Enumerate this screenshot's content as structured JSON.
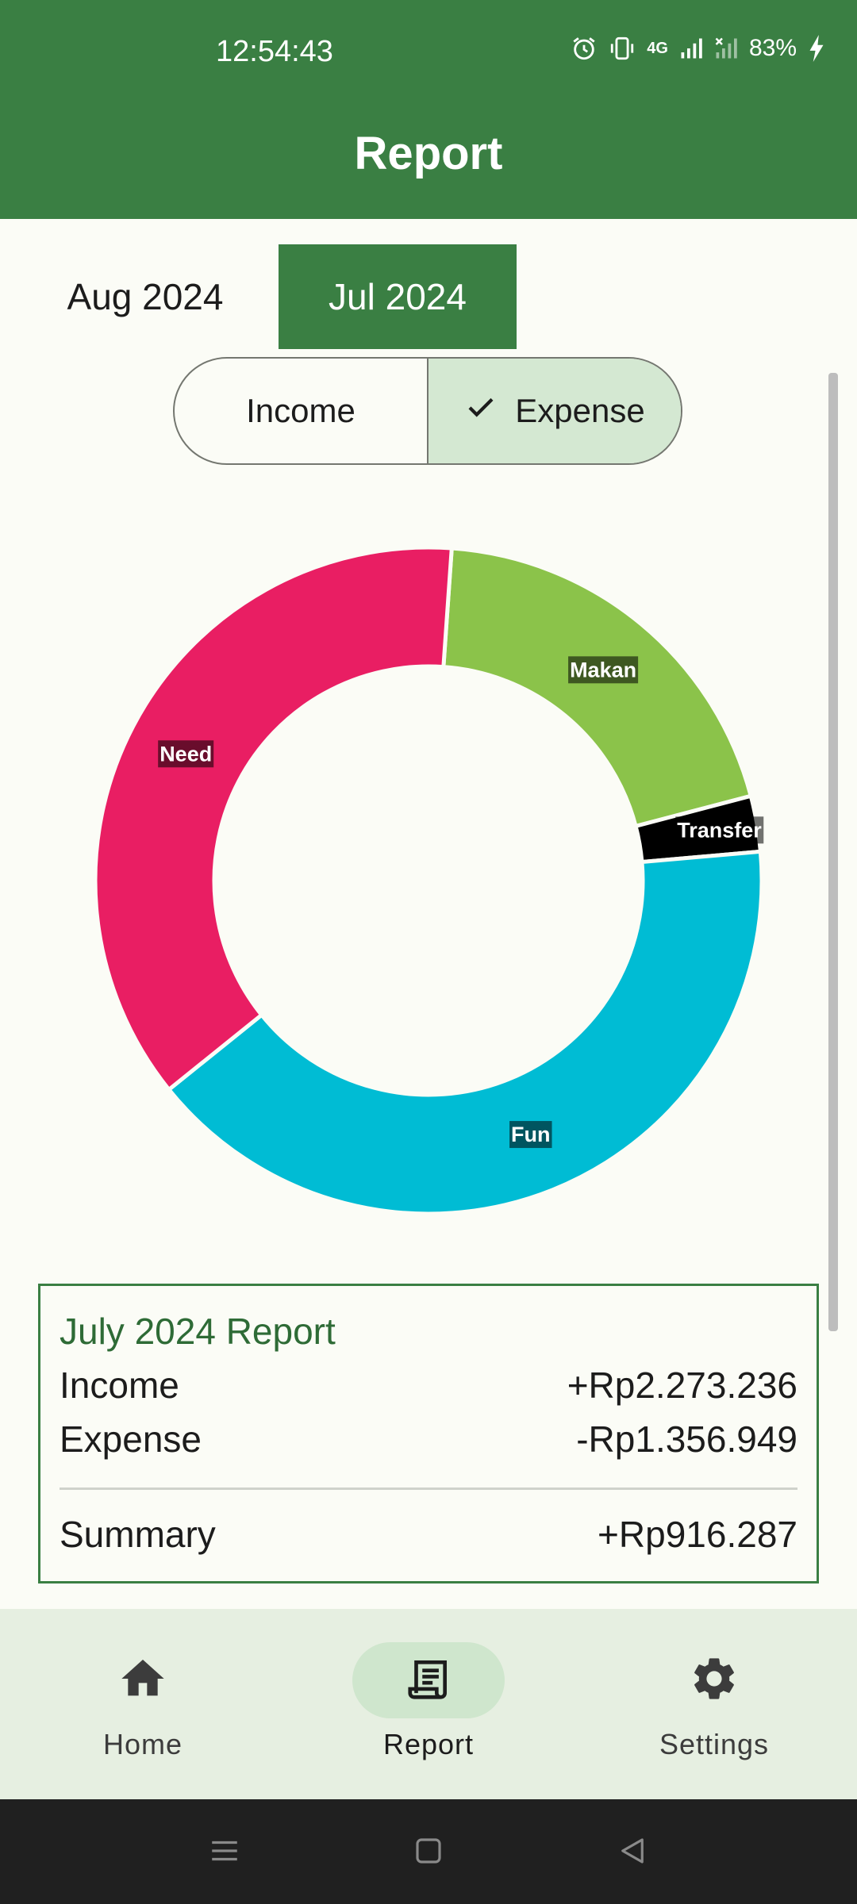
{
  "status_bar": {
    "time": "12:54:43",
    "network": "4G",
    "battery": "83%"
  },
  "app_bar": {
    "title": "Report"
  },
  "month_tabs": [
    {
      "label": "Aug 2024",
      "selected": false
    },
    {
      "label": "Jul 2024",
      "selected": true
    }
  ],
  "segmented": {
    "income_label": "Income",
    "expense_label": "Expense",
    "selected": "Expense"
  },
  "chart_data": {
    "type": "pie",
    "donut": true,
    "slices": [
      {
        "label": "Makan",
        "value": 19.8,
        "color": "#8bc34a"
      },
      {
        "label": "Transfer",
        "value": 2.7,
        "color": "#000000"
      },
      {
        "label": "Fun",
        "value": 40.6,
        "color": "#00bcd4"
      },
      {
        "label": "Need",
        "value": 36.9,
        "color": "#e91e63"
      }
    ]
  },
  "report": {
    "title": "July 2024 Report",
    "income_label": "Income",
    "income_value": "+Rp2.273.236",
    "expense_label": "Expense",
    "expense_value": "-Rp1.356.949",
    "summary_label": "Summary",
    "summary_value": "+Rp916.287"
  },
  "bottom_nav": [
    {
      "label": "Home",
      "icon": "home-icon",
      "selected": false
    },
    {
      "label": "Report",
      "icon": "receipt-icon",
      "selected": true
    },
    {
      "label": "Settings",
      "icon": "gear-icon",
      "selected": false
    }
  ],
  "colors": {
    "primary": "#3a7f43",
    "selected_container": "#d4e8d2",
    "background": "#fbfcf6"
  }
}
